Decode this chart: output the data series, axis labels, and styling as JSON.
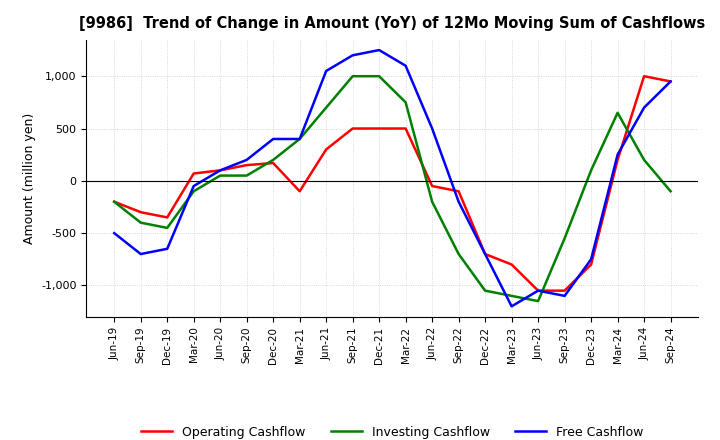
{
  "title": "[9986]  Trend of Change in Amount (YoY) of 12Mo Moving Sum of Cashflows",
  "ylabel": "Amount (million yen)",
  "ylim": [
    -1300,
    1350
  ],
  "yticks": [
    -1000,
    -500,
    0,
    500,
    1000
  ],
  "x_labels": [
    "Jun-19",
    "Sep-19",
    "Dec-19",
    "Mar-20",
    "Jun-20",
    "Sep-20",
    "Dec-20",
    "Mar-21",
    "Jun-21",
    "Sep-21",
    "Dec-21",
    "Mar-22",
    "Jun-22",
    "Sep-22",
    "Dec-22",
    "Mar-23",
    "Jun-23",
    "Sep-23",
    "Dec-23",
    "Mar-24",
    "Jun-24",
    "Sep-24"
  ],
  "operating": [
    -200,
    -300,
    -350,
    70,
    100,
    150,
    170,
    -100,
    300,
    500,
    500,
    500,
    -50,
    -100,
    -700,
    -800,
    -1050,
    -1050,
    -800,
    200,
    1000,
    950
  ],
  "investing": [
    -200,
    -400,
    -450,
    -100,
    50,
    50,
    200,
    400,
    700,
    1000,
    1000,
    750,
    -200,
    -700,
    -1050,
    -1100,
    -1150,
    -550,
    100,
    650,
    200,
    -100
  ],
  "free": [
    -500,
    -700,
    -650,
    -50,
    100,
    200,
    400,
    400,
    1050,
    1200,
    1250,
    1100,
    500,
    -200,
    -700,
    -1200,
    -1050,
    -1100,
    -750,
    250,
    700,
    950
  ],
  "operating_color": "#ff0000",
  "investing_color": "#008000",
  "free_color": "#0000ff",
  "background_color": "#ffffff",
  "grid_color": "#cccccc"
}
